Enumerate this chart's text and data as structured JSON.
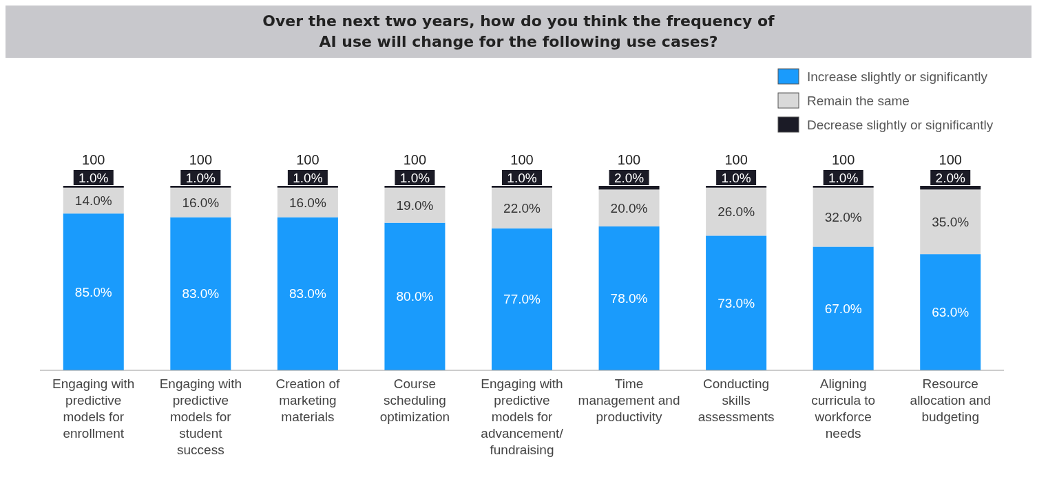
{
  "chart_data": {
    "type": "bar",
    "stacked": true,
    "title": "Over the next two years, how do you think the frequency of AI use will change for the following use cases?",
    "categories": [
      "Engaging with predictive models for enrollment",
      "Engaging with predictive models for student success",
      "Creation of marketing materials",
      "Course scheduling optimization",
      "Engaging with predictive models for advancement/fundraising",
      "Time management and productivity",
      "Conducting skills assessments",
      "Aligning curricula to workforce needs",
      "Resource allocation and budgeting"
    ],
    "ylim": [
      0,
      100
    ],
    "tick_labels": "x",
    "legend": "top right",
    "series": [
      {
        "name": "Increase slightly or significantly",
        "color": "#1a9bfc",
        "values": [
          85,
          83,
          83,
          80,
          77,
          78,
          73,
          67,
          63
        ],
        "value_labels": [
          "85.0%",
          "83.0%",
          "83.0%",
          "80.0%",
          "77.0%",
          "78.0%",
          "73.0%",
          "67.0%",
          "63.0%"
        ]
      },
      {
        "name": "Remain the same",
        "color": "#d9d9d9",
        "values": [
          14,
          16,
          16,
          19,
          22,
          20,
          26,
          32,
          35
        ],
        "value_labels": [
          "14.0%",
          "16.0%",
          "16.0%",
          "19.0%",
          "22.0%",
          "20.0%",
          "26.0%",
          "32.0%",
          "35.0%"
        ]
      },
      {
        "name": "Decrease slightly or significantly",
        "color": "#1b1b26",
        "values": [
          1,
          1,
          1,
          1,
          1,
          2,
          1,
          1,
          2
        ],
        "value_labels": [
          "1.0%",
          "1.0%",
          "1.0%",
          "1.0%",
          "1.0%",
          "2.0%",
          "1.0%",
          "1.0%",
          "2.0%"
        ]
      }
    ],
    "totals": [
      "100",
      "100",
      "100",
      "100",
      "100",
      "100",
      "100",
      "100",
      "100"
    ]
  }
}
